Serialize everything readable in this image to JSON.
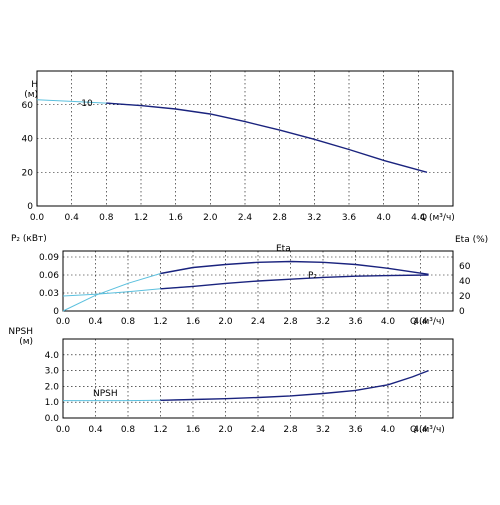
{
  "chart_data": [
    {
      "type": "line",
      "ylabel": "H",
      "yunit": "(м)",
      "xlabel": "Q",
      "xunit": "(м³/ч)",
      "xlim": [
        0,
        4.8
      ],
      "ylim": [
        0,
        80
      ],
      "xticks": [
        "0.0",
        "0.4",
        "0.8",
        "1.2",
        "1.6",
        "2.0",
        "2.4",
        "2.8",
        "3.2",
        "3.6",
        "4.0",
        "4.4"
      ],
      "yticks": [
        "0",
        "20",
        "40",
        "60"
      ],
      "grid": true,
      "series": [
        {
          "name": "10",
          "color": "#1a237e",
          "ext_color": "#5bc0de",
          "ext_until": 0.9,
          "x": [
            0.0,
            0.4,
            0.8,
            1.2,
            1.6,
            2.0,
            2.4,
            2.8,
            3.2,
            3.6,
            4.0,
            4.5
          ],
          "y": [
            63,
            62,
            61,
            59.5,
            57.5,
            54.5,
            50,
            45,
            39.5,
            33.5,
            27,
            20
          ]
        }
      ]
    },
    {
      "type": "line",
      "ylabel": "P₂ (кВт)",
      "ylabel2": "Eta (%)",
      "xlabel": "Q",
      "xunit": "(м³/ч)",
      "xlim": [
        0,
        4.8
      ],
      "ylim": [
        0,
        0.1
      ],
      "ylim2": [
        0,
        80
      ],
      "xticks": [
        "0.0",
        "0.4",
        "0.8",
        "1.2",
        "1.6",
        "2.0",
        "2.4",
        "2.8",
        "3.2",
        "3.6",
        "4.0",
        "4.4"
      ],
      "yticks": [
        "0",
        "0.03",
        "0.06",
        "0.09"
      ],
      "yticks2": [
        "0",
        "20",
        "40",
        "60"
      ],
      "grid": true,
      "series": [
        {
          "name": "Eta",
          "axis": "right",
          "color": "#1a237e",
          "ext_color": "#5bc0de",
          "ext_until": 1.3,
          "x": [
            0.0,
            0.4,
            0.8,
            1.2,
            1.6,
            2.0,
            2.4,
            2.8,
            3.2,
            3.6,
            4.0,
            4.5
          ],
          "y": [
            0,
            21,
            37,
            50,
            58,
            62,
            65,
            66,
            65,
            62,
            57,
            49
          ]
        },
        {
          "name": "P₂",
          "axis": "left",
          "color": "#1a237e",
          "ext_color": "#5bc0de",
          "ext_until": 1.3,
          "x": [
            0.0,
            0.4,
            0.8,
            1.2,
            1.6,
            2.0,
            2.4,
            2.8,
            3.2,
            3.6,
            4.0,
            4.5
          ],
          "y": [
            0.025,
            0.028,
            0.032,
            0.037,
            0.041,
            0.046,
            0.05,
            0.053,
            0.056,
            0.058,
            0.059,
            0.06
          ]
        }
      ]
    },
    {
      "type": "line",
      "ylabel": "NPSH",
      "yunit": "(м)",
      "xlabel": "Q",
      "xunit": "(м³/ч)",
      "xlim": [
        0,
        4.8
      ],
      "ylim": [
        0,
        5
      ],
      "xticks": [
        "0.0",
        "0.4",
        "0.8",
        "1.2",
        "1.6",
        "2.0",
        "2.4",
        "2.8",
        "3.2",
        "3.6",
        "4.0",
        "4.4"
      ],
      "yticks": [
        "0.0",
        "1.0",
        "2.0",
        "3.0",
        "4.0"
      ],
      "grid": true,
      "series": [
        {
          "name": "NPSH",
          "color": "#1a237e",
          "ext_color": "#5bc0de",
          "ext_until": 1.3,
          "x": [
            0.0,
            0.4,
            0.8,
            1.2,
            1.6,
            2.0,
            2.4,
            2.8,
            3.2,
            3.6,
            4.0,
            4.3,
            4.5
          ],
          "y": [
            1.1,
            1.1,
            1.1,
            1.12,
            1.17,
            1.22,
            1.3,
            1.4,
            1.55,
            1.75,
            2.1,
            2.6,
            3.0
          ]
        }
      ]
    }
  ]
}
